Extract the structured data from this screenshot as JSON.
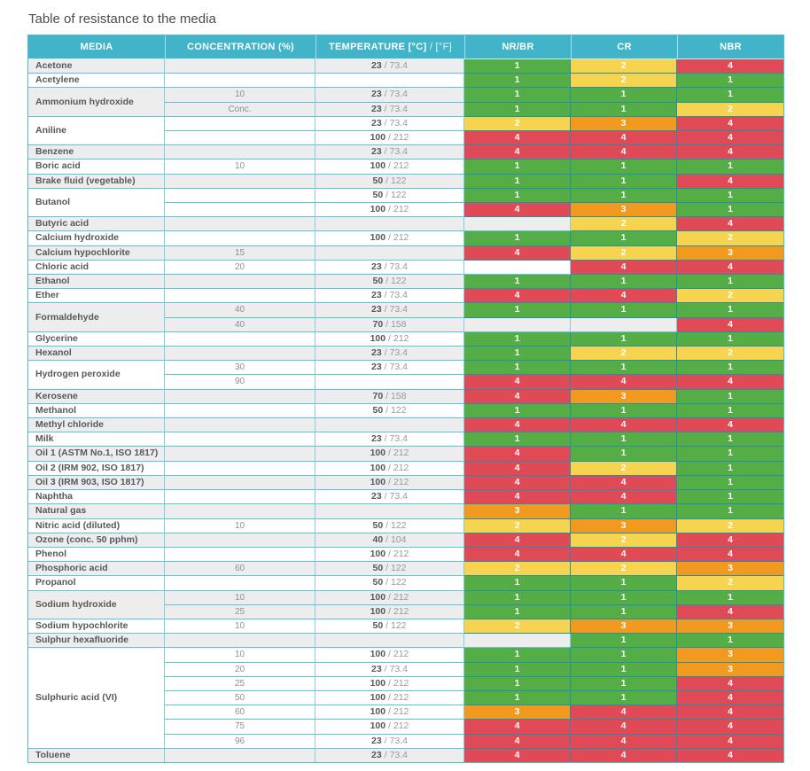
{
  "page": {
    "title": "Table of resistance to the media"
  },
  "table": {
    "columns": [
      {
        "label": "MEDIA"
      },
      {
        "label": "CONCENTRATION (%)"
      },
      {
        "label_bold": "TEMPERATURE [°C]",
        "label_light": "/ [°F]"
      },
      {
        "label": "NR/BR"
      },
      {
        "label": "CR"
      },
      {
        "label": "NBR"
      }
    ],
    "rating_colors": {
      "1": "#55ad46",
      "2": "#f7d44f",
      "3": "#f29a20",
      "4": "#e04a56"
    },
    "theme": {
      "header_bg": "#41b4c9",
      "stripe_gray": "#ededee",
      "stripe_white": "#ffffff"
    },
    "temp_separator": " / ",
    "groups": [
      {
        "media": "Acetone",
        "rows": [
          {
            "concentration": "",
            "temp_c": "23",
            "temp_f": "73.4",
            "ratings": [
              1,
              2,
              4
            ]
          }
        ]
      },
      {
        "media": "Acetylene",
        "rows": [
          {
            "concentration": "",
            "temp_c": "",
            "temp_f": "",
            "ratings": [
              1,
              2,
              1
            ]
          }
        ]
      },
      {
        "media": "Ammonium hydroxide",
        "rows": [
          {
            "concentration": "10",
            "temp_c": "23",
            "temp_f": "73.4",
            "ratings": [
              1,
              1,
              1
            ]
          },
          {
            "concentration": "Conc.",
            "temp_c": "23",
            "temp_f": "73.4",
            "ratings": [
              1,
              1,
              2
            ]
          }
        ]
      },
      {
        "media": "Aniline",
        "rows": [
          {
            "concentration": "",
            "temp_c": "23",
            "temp_f": "73.4",
            "ratings": [
              2,
              3,
              4
            ]
          },
          {
            "concentration": "",
            "temp_c": "100",
            "temp_f": "212",
            "ratings": [
              4,
              4,
              4
            ]
          }
        ]
      },
      {
        "media": "Benzene",
        "rows": [
          {
            "concentration": "",
            "temp_c": "23",
            "temp_f": "73.4",
            "ratings": [
              4,
              4,
              4
            ]
          }
        ]
      },
      {
        "media": "Boric acid",
        "rows": [
          {
            "concentration": "10",
            "temp_c": "100",
            "temp_f": "212",
            "ratings": [
              1,
              1,
              1
            ]
          }
        ]
      },
      {
        "media": "Brake fluid (vegetable)",
        "rows": [
          {
            "concentration": "",
            "temp_c": "50",
            "temp_f": "122",
            "ratings": [
              1,
              1,
              4
            ]
          }
        ]
      },
      {
        "media": "Butanol",
        "rows": [
          {
            "concentration": "",
            "temp_c": "50",
            "temp_f": "122",
            "ratings": [
              1,
              1,
              1
            ]
          },
          {
            "concentration": "",
            "temp_c": "100",
            "temp_f": "212",
            "ratings": [
              4,
              3,
              1
            ]
          }
        ]
      },
      {
        "media": "Butyric acid",
        "rows": [
          {
            "concentration": "",
            "temp_c": "",
            "temp_f": "",
            "ratings": [
              null,
              2,
              4
            ]
          }
        ]
      },
      {
        "media": "Calcium hydroxide",
        "rows": [
          {
            "concentration": "",
            "temp_c": "100",
            "temp_f": "212",
            "ratings": [
              1,
              1,
              2
            ]
          }
        ]
      },
      {
        "media": "Calcium hypochlorite",
        "rows": [
          {
            "concentration": "15",
            "temp_c": "",
            "temp_f": "",
            "ratings": [
              4,
              2,
              3
            ]
          }
        ]
      },
      {
        "media": "Chloric acid",
        "rows": [
          {
            "concentration": "20",
            "temp_c": "23",
            "temp_f": "73.4",
            "ratings": [
              null,
              4,
              4
            ]
          }
        ]
      },
      {
        "media": "Ethanol",
        "rows": [
          {
            "concentration": "",
            "temp_c": "50",
            "temp_f": "122",
            "ratings": [
              1,
              1,
              1
            ]
          }
        ]
      },
      {
        "media": "Ether",
        "rows": [
          {
            "concentration": "",
            "temp_c": "23",
            "temp_f": "73.4",
            "ratings": [
              4,
              4,
              2
            ]
          }
        ]
      },
      {
        "media": "Formaldehyde",
        "rows": [
          {
            "concentration": "40",
            "temp_c": "23",
            "temp_f": "73.4",
            "ratings": [
              1,
              1,
              1
            ]
          },
          {
            "concentration": "40",
            "temp_c": "70",
            "temp_f": "158",
            "ratings": [
              null,
              null,
              4
            ]
          }
        ]
      },
      {
        "media": "Glycerine",
        "rows": [
          {
            "concentration": "",
            "temp_c": "100",
            "temp_f": "212",
            "ratings": [
              1,
              1,
              1
            ]
          }
        ]
      },
      {
        "media": "Hexanol",
        "rows": [
          {
            "concentration": "",
            "temp_c": "23",
            "temp_f": "73.4",
            "ratings": [
              1,
              2,
              2
            ]
          }
        ]
      },
      {
        "media": "Hydrogen peroxide",
        "rows": [
          {
            "concentration": "30",
            "temp_c": "23",
            "temp_f": "73.4",
            "ratings": [
              1,
              1,
              1
            ]
          },
          {
            "concentration": "90",
            "temp_c": "",
            "temp_f": "",
            "ratings": [
              4,
              4,
              4
            ]
          }
        ]
      },
      {
        "media": "Kerosene",
        "rows": [
          {
            "concentration": "",
            "temp_c": "70",
            "temp_f": "158",
            "ratings": [
              4,
              3,
              1
            ]
          }
        ]
      },
      {
        "media": "Methanol",
        "rows": [
          {
            "concentration": "",
            "temp_c": "50",
            "temp_f": "122",
            "ratings": [
              1,
              1,
              1
            ]
          }
        ]
      },
      {
        "media": "Methyl chloride",
        "rows": [
          {
            "concentration": "",
            "temp_c": "",
            "temp_f": "",
            "ratings": [
              4,
              4,
              4
            ]
          }
        ]
      },
      {
        "media": "Milk",
        "rows": [
          {
            "concentration": "",
            "temp_c": "23",
            "temp_f": "73.4",
            "ratings": [
              1,
              1,
              1
            ]
          }
        ]
      },
      {
        "media": "Oil 1 (ASTM No.1, ISO 1817)",
        "rows": [
          {
            "concentration": "",
            "temp_c": "100",
            "temp_f": "212",
            "ratings": [
              4,
              1,
              1
            ]
          }
        ]
      },
      {
        "media": "Oil 2 (IRM 902, ISO 1817)",
        "rows": [
          {
            "concentration": "",
            "temp_c": "100",
            "temp_f": "212",
            "ratings": [
              4,
              2,
              1
            ]
          }
        ]
      },
      {
        "media": "Oil 3 (IRM 903, ISO 1817)",
        "rows": [
          {
            "concentration": "",
            "temp_c": "100",
            "temp_f": "212",
            "ratings": [
              4,
              4,
              1
            ]
          }
        ]
      },
      {
        "media": "Naphtha",
        "rows": [
          {
            "concentration": "",
            "temp_c": "23",
            "temp_f": "73.4",
            "ratings": [
              4,
              4,
              1
            ]
          }
        ]
      },
      {
        "media": "Natural gas",
        "rows": [
          {
            "concentration": "",
            "temp_c": "",
            "temp_f": "",
            "ratings": [
              3,
              1,
              1
            ]
          }
        ]
      },
      {
        "media": "Nitric acid (diluted)",
        "rows": [
          {
            "concentration": "10",
            "temp_c": "50",
            "temp_f": "122",
            "ratings": [
              2,
              3,
              2
            ]
          }
        ]
      },
      {
        "media": "Ozone (conc. 50 pphm)",
        "rows": [
          {
            "concentration": "",
            "temp_c": "40",
            "temp_f": "104",
            "ratings": [
              4,
              2,
              4
            ]
          }
        ]
      },
      {
        "media": "Phenol",
        "rows": [
          {
            "concentration": "",
            "temp_c": "100",
            "temp_f": "212",
            "ratings": [
              4,
              4,
              4
            ]
          }
        ]
      },
      {
        "media": "Phosphoric acid",
        "rows": [
          {
            "concentration": "60",
            "temp_c": "50",
            "temp_f": "122",
            "ratings": [
              2,
              2,
              3
            ]
          }
        ]
      },
      {
        "media": "Propanol",
        "rows": [
          {
            "concentration": "",
            "temp_c": "50",
            "temp_f": "122",
            "ratings": [
              1,
              1,
              2
            ]
          }
        ]
      },
      {
        "media": "Sodium hydroxide",
        "rows": [
          {
            "concentration": "10",
            "temp_c": "100",
            "temp_f": "212",
            "ratings": [
              1,
              1,
              1
            ]
          },
          {
            "concentration": "25",
            "temp_c": "100",
            "temp_f": "212",
            "ratings": [
              1,
              1,
              4
            ]
          }
        ]
      },
      {
        "media": "Sodium hypochlorite",
        "rows": [
          {
            "concentration": "10",
            "temp_c": "50",
            "temp_f": "122",
            "ratings": [
              2,
              3,
              3
            ]
          }
        ]
      },
      {
        "media": "Sulphur hexafluoride",
        "rows": [
          {
            "concentration": "",
            "temp_c": "",
            "temp_f": "",
            "ratings": [
              null,
              1,
              1
            ]
          }
        ]
      },
      {
        "media": "Sulphuric acid (VI)",
        "rows": [
          {
            "concentration": "10",
            "temp_c": "100",
            "temp_f": "212",
            "ratings": [
              1,
              1,
              3
            ]
          },
          {
            "concentration": "20",
            "temp_c": "23",
            "temp_f": "73.4",
            "ratings": [
              1,
              1,
              3
            ]
          },
          {
            "concentration": "25",
            "temp_c": "100",
            "temp_f": "212",
            "ratings": [
              1,
              1,
              4
            ]
          },
          {
            "concentration": "50",
            "temp_c": "100",
            "temp_f": "212",
            "ratings": [
              1,
              1,
              4
            ]
          },
          {
            "concentration": "60",
            "temp_c": "100",
            "temp_f": "212",
            "ratings": [
              3,
              4,
              4
            ]
          },
          {
            "concentration": "75",
            "temp_c": "100",
            "temp_f": "212",
            "ratings": [
              4,
              4,
              4
            ]
          },
          {
            "concentration": "96",
            "temp_c": "23",
            "temp_f": "73.4",
            "ratings": [
              4,
              4,
              4
            ]
          }
        ]
      },
      {
        "media": "Toluene",
        "rows": [
          {
            "concentration": "",
            "temp_c": "23",
            "temp_f": "73.4",
            "ratings": [
              4,
              4,
              4
            ]
          }
        ]
      }
    ]
  }
}
